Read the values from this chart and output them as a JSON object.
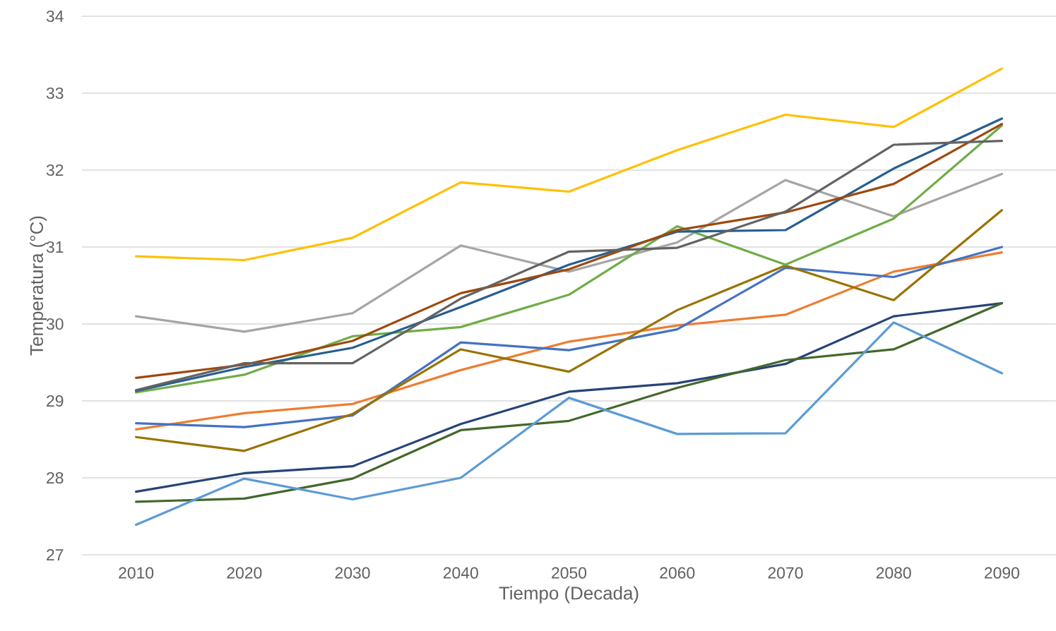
{
  "chart_data": {
    "type": "line",
    "xlabel": "Tiempo (Decada)",
    "ylabel": "Temperatura (°C)",
    "categories": [
      "2010",
      "2020",
      "2030",
      "2040",
      "2050",
      "2060",
      "2070",
      "2080",
      "2090"
    ],
    "ylim": [
      27,
      34
    ],
    "yticks": [
      27,
      28,
      29,
      30,
      31,
      32,
      33,
      34
    ],
    "grid": "y",
    "legend": false,
    "series": [
      {
        "color": "#ffc000",
        "values": [
          30.88,
          30.83,
          31.12,
          31.84,
          31.72,
          32.26,
          32.72,
          32.56,
          33.32
        ]
      },
      {
        "color": "#a5a5a5",
        "values": [
          30.1,
          29.9,
          30.14,
          31.02,
          30.68,
          31.06,
          31.87,
          31.4,
          31.95
        ]
      },
      {
        "color": "#ed7d31",
        "values": [
          28.63,
          28.84,
          28.96,
          29.4,
          29.77,
          29.98,
          30.12,
          30.68,
          30.93
        ]
      },
      {
        "color": "#4472c4",
        "values": [
          28.71,
          28.66,
          28.81,
          29.76,
          29.66,
          29.93,
          30.73,
          30.61,
          31.0
        ]
      },
      {
        "color": "#997300",
        "values": [
          28.53,
          28.35,
          28.83,
          29.67,
          29.38,
          30.18,
          30.76,
          30.31,
          31.48
        ]
      },
      {
        "color": "#70ad47",
        "values": [
          29.11,
          29.34,
          29.84,
          29.96,
          30.38,
          31.27,
          30.77,
          31.37,
          32.58
        ]
      },
      {
        "color": "#255e91",
        "values": [
          29.13,
          29.44,
          29.69,
          30.22,
          30.77,
          31.2,
          31.22,
          32.02,
          32.67
        ]
      },
      {
        "color": "#9e480e",
        "values": [
          29.3,
          29.47,
          29.78,
          30.4,
          30.71,
          31.22,
          31.45,
          31.82,
          32.6
        ]
      },
      {
        "color": "#636363",
        "values": [
          29.14,
          29.49,
          29.49,
          30.33,
          30.94,
          30.99,
          31.46,
          32.33,
          32.38
        ]
      },
      {
        "color": "#264478",
        "values": [
          27.82,
          28.06,
          28.15,
          28.7,
          29.12,
          29.23,
          29.48,
          30.1,
          30.27
        ]
      },
      {
        "color": "#43682b",
        "values": [
          27.69,
          27.73,
          27.99,
          28.62,
          28.74,
          29.17,
          29.53,
          29.67,
          30.27
        ]
      },
      {
        "color": "#5b9bd5",
        "values": [
          27.39,
          27.99,
          27.72,
          28.0,
          29.04,
          28.57,
          28.58,
          30.02,
          29.36
        ]
      }
    ]
  }
}
